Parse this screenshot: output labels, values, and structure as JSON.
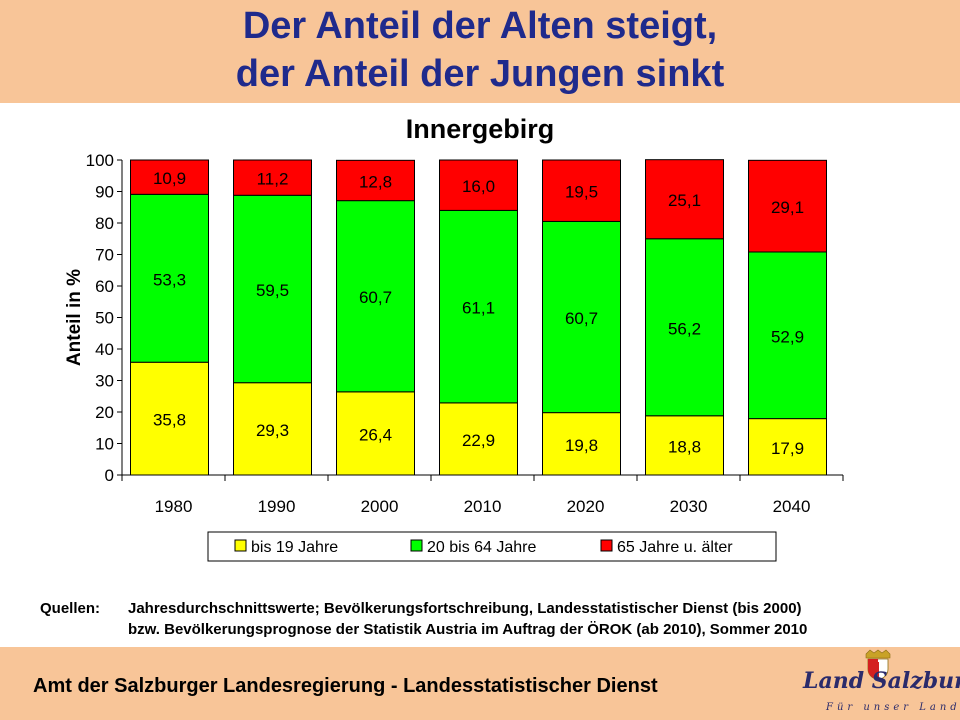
{
  "title_line1": "Der Anteil der Alten steigt,",
  "title_line2": "der Anteil der Jungen sinkt",
  "chart_data": {
    "type": "bar",
    "stacked": true,
    "title": "Innergebirg",
    "ylabel": "Anteil in %",
    "xlabel": "",
    "ylim": [
      0,
      100
    ],
    "yticks": [
      0,
      10,
      20,
      30,
      40,
      50,
      60,
      70,
      80,
      90,
      100
    ],
    "grid": false,
    "legend_position": "bottom",
    "categories": [
      "1980",
      "1990",
      "2000",
      "2010",
      "2020",
      "2030",
      "2040"
    ],
    "series": [
      {
        "name": "bis 19 Jahre",
        "color": "#ffff00",
        "values": [
          35.8,
          29.3,
          26.4,
          22.9,
          19.8,
          18.8,
          17.9
        ],
        "labels": [
          "35,8",
          "29,3",
          "26,4",
          "22,9",
          "19,8",
          "18,8",
          "17,9"
        ]
      },
      {
        "name": "20 bis 64 Jahre",
        "color": "#00ff00",
        "values": [
          53.3,
          59.5,
          60.7,
          61.1,
          60.7,
          56.2,
          52.9
        ],
        "labels": [
          "53,3",
          "59,5",
          "60,7",
          "61,1",
          "60,7",
          "56,2",
          "52,9"
        ]
      },
      {
        "name": "65 Jahre u. älter",
        "color": "#ff0000",
        "values": [
          10.9,
          11.2,
          12.8,
          16.0,
          19.5,
          25.1,
          29.1
        ],
        "labels": [
          "10,9",
          "11,2",
          "12,8",
          "16,0",
          "19,5",
          "25,1",
          "29,1"
        ]
      }
    ]
  },
  "sources": {
    "lead": "Quellen:",
    "line1": "Jahresdurchschnittswerte; Bevölkerungsfortschreibung, Landesstatistischer Dienst (bis 2000)",
    "line2": "bzw. Bevölkerungsprognose der Statistik Austria im Auftrag der ÖROK (ab 2010), Sommer 2010"
  },
  "footer": {
    "text": "Amt der Salzburger Landesregierung - Landesstatistischer Dienst",
    "logo_text": "Land Salzburg",
    "logo_tagline": "Für unser Land!"
  }
}
